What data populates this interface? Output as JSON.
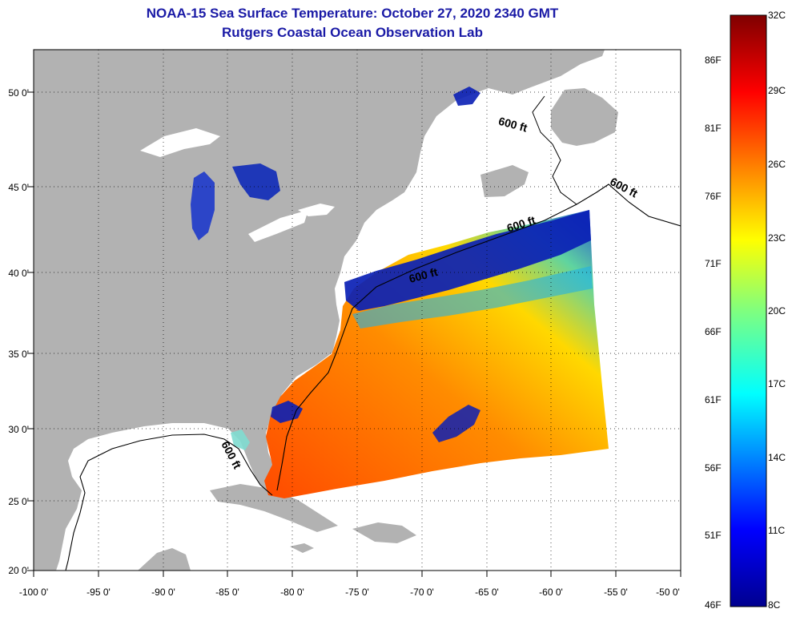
{
  "title_line1": "NOAA-15 Sea Surface Temperature:  October 27, 2020 2340 GMT",
  "title_line2": "Rutgers Coastal Ocean Observation Lab",
  "axes": {
    "lon_labels": [
      "-100 0'",
      "-95 0'",
      "-90 0'",
      "-85 0'",
      "-80 0'",
      "-75 0'",
      "-70 0'",
      "-65 0'",
      "-60 0'",
      "-55 0'",
      "-50 0'"
    ],
    "lat_labels": [
      "50 0'",
      "45 0'",
      "40 0'",
      "35 0'",
      "30 0'",
      "25 0'",
      "20 0'"
    ]
  },
  "contour_label": "600 ft",
  "colorbar": {
    "celsius": [
      "32C",
      "29C",
      "26C",
      "23C",
      "20C",
      "17C",
      "14C",
      "11C",
      "8C"
    ],
    "fahrenheit": [
      "86F",
      "81F",
      "76F",
      "71F",
      "66F",
      "61F",
      "56F",
      "51F",
      "46F"
    ]
  },
  "colors": {
    "land": "#b2b2b2",
    "water": "#ffffff",
    "title": "#1a1aa6",
    "cold": "#0a1fb5",
    "warm": "#ff5a00"
  }
}
